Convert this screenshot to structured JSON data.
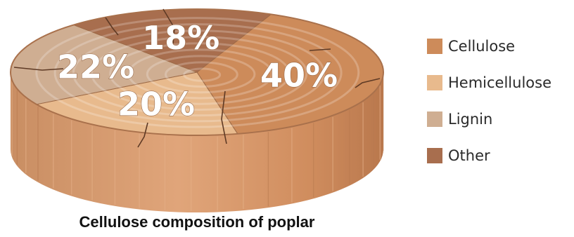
{
  "chart_data": {
    "type": "pie",
    "title": "Cellulose composition of poplar",
    "slices": [
      {
        "label": "Cellulose",
        "value": 40,
        "display": "40%",
        "color": "#cd8b5a"
      },
      {
        "label": "Hemicellulose",
        "value": 20,
        "display": "20%",
        "color": "#e8ba8d"
      },
      {
        "label": "Lignin",
        "value": 22,
        "display": "22%",
        "color": "#cfae92"
      },
      {
        "label": "Other",
        "value": 18,
        "display": "18%",
        "color": "#a86e4e"
      }
    ],
    "legend_position": "right"
  }
}
